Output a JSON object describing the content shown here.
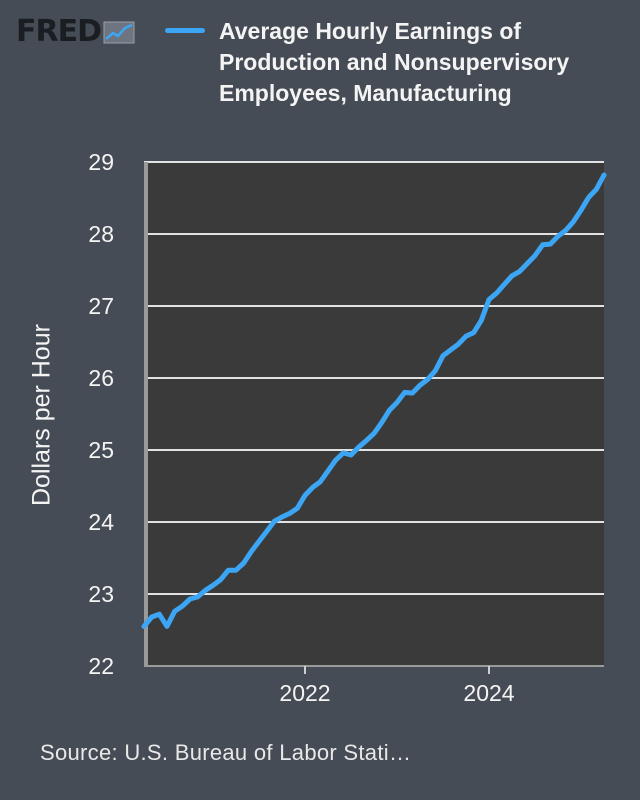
{
  "header": {
    "logo_text": "FRED",
    "logo_icon": "line-chart-icon"
  },
  "colors": {
    "background": "#464c55",
    "plot_background": "#3a3a3a",
    "series": "#3ca6f5",
    "grid": "#ffffff"
  },
  "source": "Source: U.S. Bureau of Labor Stati…",
  "chart_data": {
    "type": "line",
    "title": "",
    "xlabel": "",
    "ylabel": "Dollars per Hour",
    "ylim": [
      22,
      29
    ],
    "xlim": [
      "2020-04",
      "2025-04"
    ],
    "yticks": [
      22,
      23,
      24,
      25,
      26,
      27,
      28,
      29
    ],
    "xticks": [
      "2022-01",
      "2024-01"
    ],
    "xtick_labels": [
      "2022",
      "2024"
    ],
    "grid": true,
    "legend_position": "top",
    "series": [
      {
        "name": "Average Hourly Earnings of Production and Nonsupervisory Employees, Manufacturing",
        "color": "#3ca6f5",
        "x": [
          "2020-04",
          "2020-05",
          "2020-06",
          "2020-07",
          "2020-08",
          "2020-09",
          "2020-10",
          "2020-11",
          "2020-12",
          "2021-01",
          "2021-02",
          "2021-03",
          "2021-04",
          "2021-05",
          "2021-06",
          "2021-07",
          "2021-08",
          "2021-09",
          "2021-10",
          "2021-11",
          "2021-12",
          "2022-01",
          "2022-02",
          "2022-03",
          "2022-04",
          "2022-05",
          "2022-06",
          "2022-07",
          "2022-08",
          "2022-09",
          "2022-10",
          "2022-11",
          "2022-12",
          "2023-01",
          "2023-02",
          "2023-03",
          "2023-04",
          "2023-05",
          "2023-06",
          "2023-07",
          "2023-08",
          "2023-09",
          "2023-10",
          "2023-11",
          "2023-12",
          "2024-01",
          "2024-02",
          "2024-03",
          "2024-04",
          "2024-05",
          "2024-06",
          "2024-07",
          "2024-08",
          "2024-09",
          "2024-10",
          "2024-11",
          "2024-12",
          "2025-01",
          "2025-02",
          "2025-03",
          "2025-04"
        ],
        "values": [
          22.55,
          22.68,
          22.72,
          22.55,
          22.76,
          22.83,
          22.93,
          22.96,
          23.05,
          23.12,
          23.2,
          23.33,
          23.33,
          23.43,
          23.59,
          23.73,
          23.87,
          24.01,
          24.07,
          24.12,
          24.19,
          24.37,
          24.48,
          24.56,
          24.71,
          24.86,
          24.96,
          24.93,
          25.04,
          25.13,
          25.23,
          25.38,
          25.55,
          25.66,
          25.8,
          25.79,
          25.9,
          25.98,
          26.1,
          26.31,
          26.39,
          26.47,
          26.58,
          26.63,
          26.8,
          27.09,
          27.18,
          27.3,
          27.42,
          27.48,
          27.59,
          27.7,
          27.85,
          27.86,
          27.97,
          28.05,
          28.17,
          28.33,
          28.51,
          28.62,
          28.82
        ]
      }
    ]
  }
}
